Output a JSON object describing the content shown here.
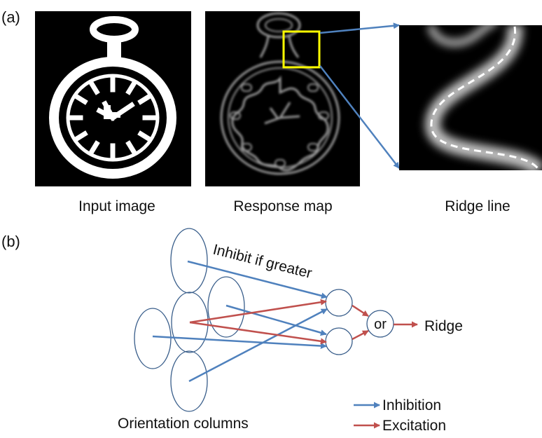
{
  "panel_a": {
    "label": "(a)",
    "images": [
      {
        "caption": "Input image"
      },
      {
        "caption": "Response map"
      },
      {
        "caption": "Ridge line"
      }
    ],
    "colors": {
      "highlight_box": "#ffff00",
      "zoom_arrows": "#4f81bd",
      "image_background": "#000000",
      "ridge_dashes": "#ffffff"
    }
  },
  "panel_b": {
    "label": "(b)",
    "inhibit_label": "Inhibit if greater",
    "or_label": "or",
    "output_label": "Ridge",
    "columns_label": "Orientation columns",
    "legend": [
      {
        "label": "Inhibition",
        "color": "#4f81bd"
      },
      {
        "label": "Excitation",
        "color": "#c0504d"
      }
    ],
    "node_color": "#385d8a"
  }
}
